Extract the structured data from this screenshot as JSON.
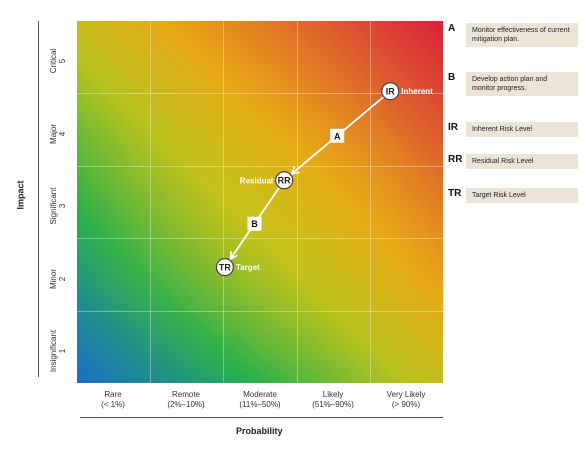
{
  "chart": {
    "y_title": "Impact",
    "x_title": "Probability",
    "y_levels": [
      {
        "name": "Critical",
        "num": "5"
      },
      {
        "name": "Major",
        "num": "4"
      },
      {
        "name": "Significant",
        "num": "3"
      },
      {
        "name": "Minor",
        "num": "2"
      },
      {
        "name": "Insignificant",
        "num": "1"
      }
    ],
    "x_levels": [
      {
        "name": "Rare",
        "range": "(< 1%)"
      },
      {
        "name": "Remote",
        "range": "(2%–10%)"
      },
      {
        "name": "Moderate",
        "range": "(11%–50%)"
      },
      {
        "name": "Likely",
        "range": "(51%–90%)"
      },
      {
        "name": "Very Likely",
        "range": "(> 90%)"
      }
    ]
  },
  "points": {
    "inherent": {
      "code": "IR",
      "label": "Inherent",
      "probability_level": 4.78,
      "impact_level": 4.53
    },
    "residual": {
      "code": "RR",
      "label": "Residual",
      "probability_level": 3.33,
      "impact_level": 3.3
    },
    "target": {
      "code": "TR",
      "label": "Target",
      "probability_level": 2.52,
      "impact_level": 2.1
    }
  },
  "steps": {
    "a": {
      "code": "A"
    },
    "b": {
      "code": "B"
    }
  },
  "legend": [
    {
      "key": "A",
      "text": "Monitor effectiveness of current mitigation plan."
    },
    {
      "key": "B",
      "text": "Develop action plan and monitor progress."
    },
    {
      "key": "IR",
      "text": "Inherent Risk Level"
    },
    {
      "key": "RR",
      "text": "Residual Risk Level"
    },
    {
      "key": "TR",
      "text": "Target Risk Level"
    }
  ]
}
